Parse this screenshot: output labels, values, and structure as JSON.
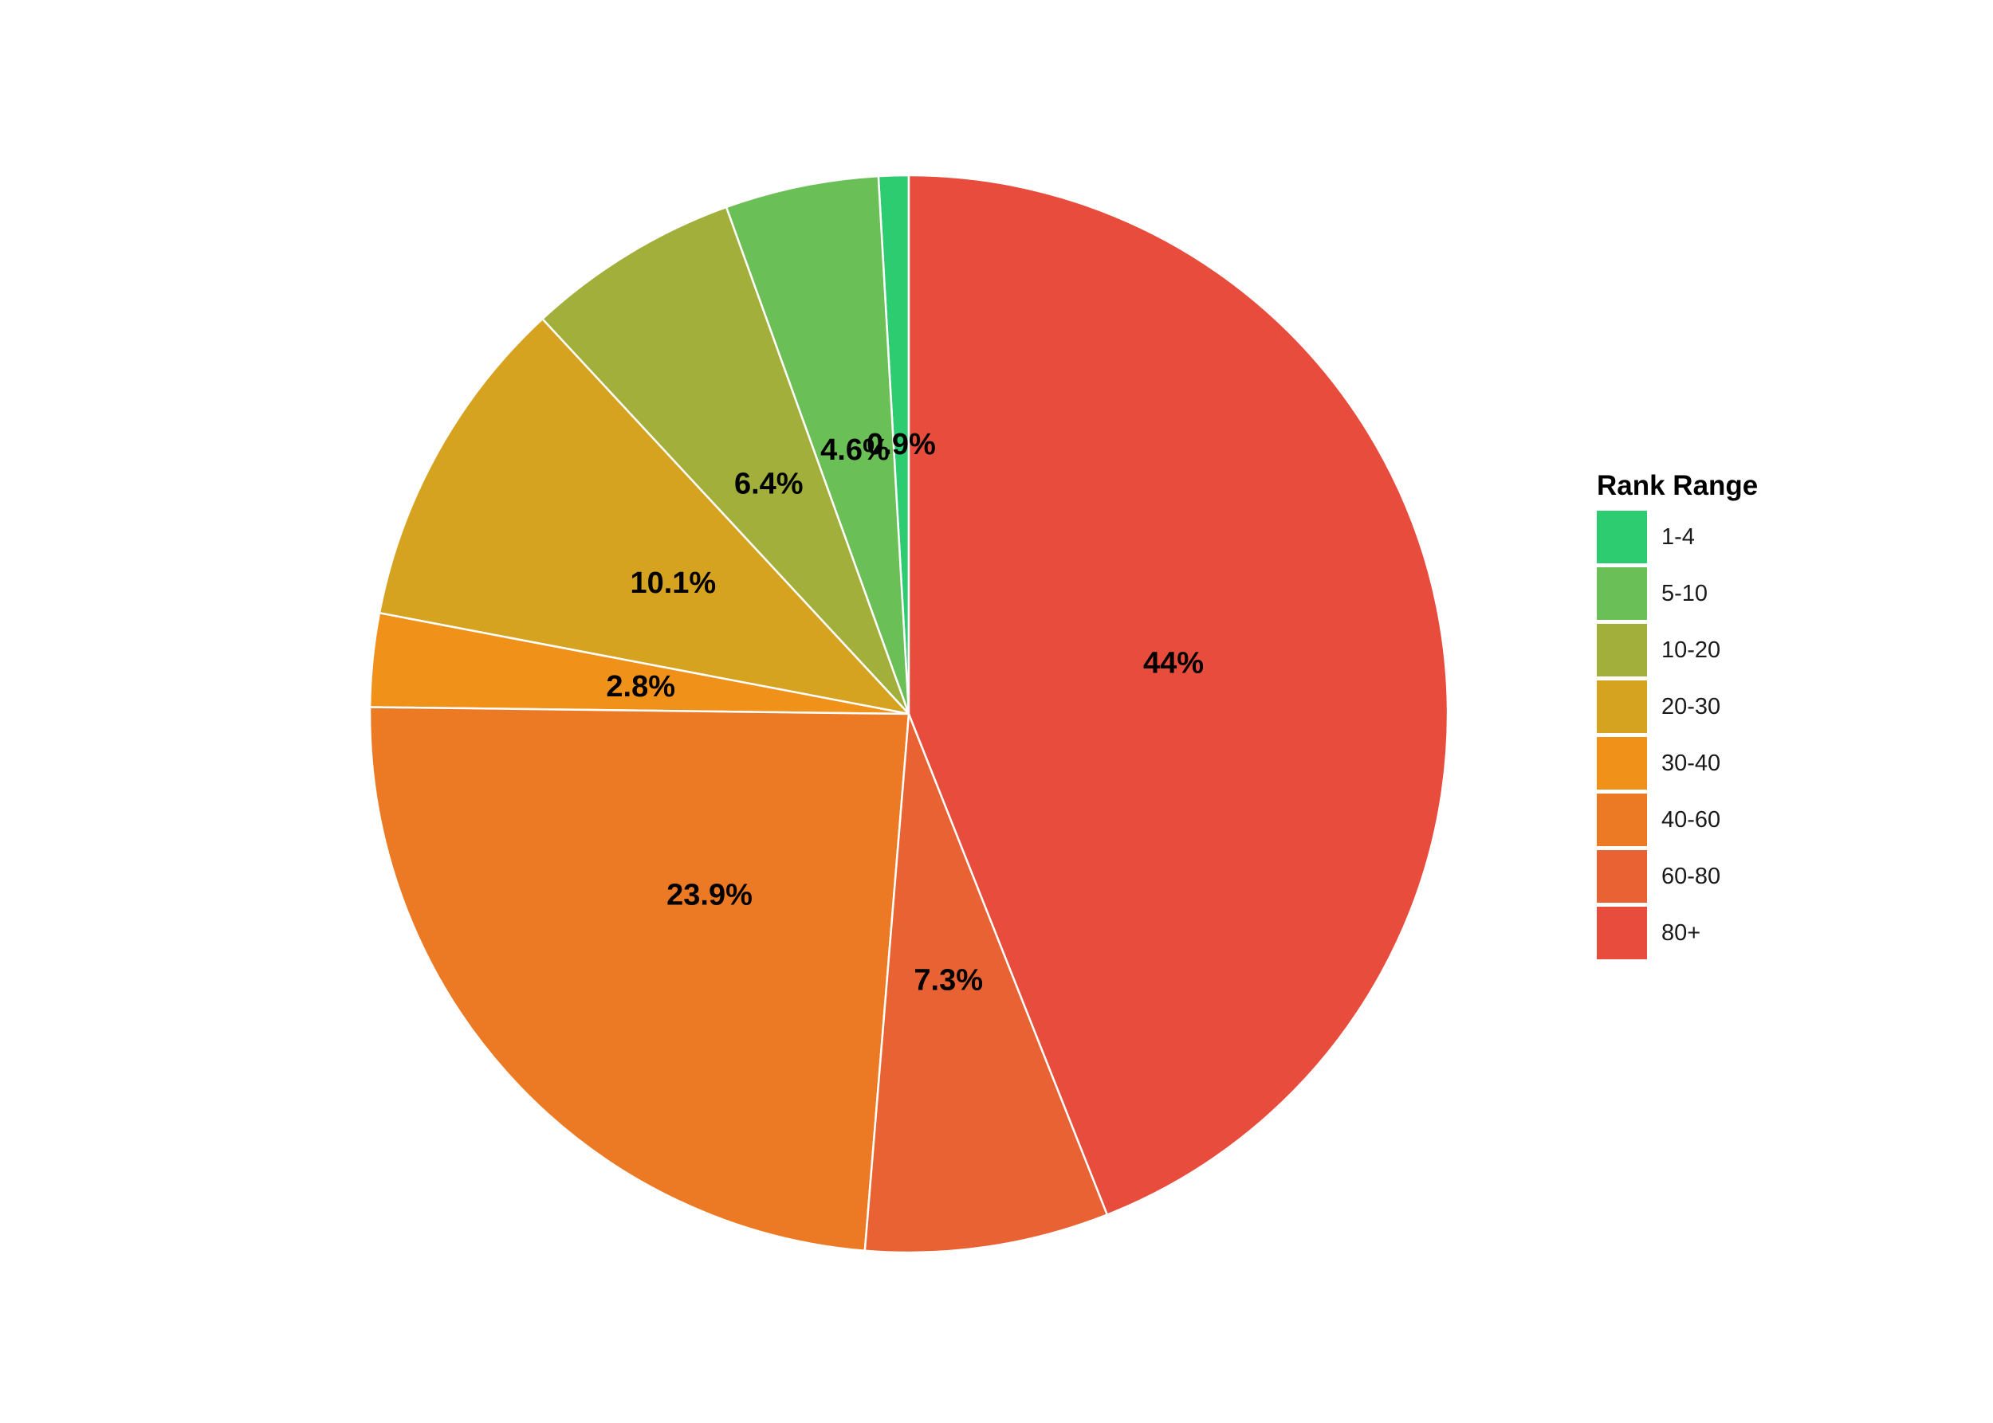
{
  "chart_data": {
    "type": "pie",
    "legend_title": "Rank Range",
    "legend_position": "right",
    "slices": [
      {
        "name": "1-4",
        "value": 0.9,
        "label": "0.9%",
        "color": "#2ECC71"
      },
      {
        "name": "5-10",
        "value": 4.6,
        "label": "4.6%",
        "color": "#6ABF56"
      },
      {
        "name": "10-20",
        "value": 6.4,
        "label": "6.4%",
        "color": "#A2B03B"
      },
      {
        "name": "20-30",
        "value": 10.1,
        "label": "10.1%",
        "color": "#D6A321"
      },
      {
        "name": "30-40",
        "value": 2.8,
        "label": "2.8%",
        "color": "#F0911A"
      },
      {
        "name": "40-60",
        "value": 23.9,
        "label": "23.9%",
        "color": "#EC7A24"
      },
      {
        "name": "60-80",
        "value": 7.3,
        "label": "7.3%",
        "color": "#E86234"
      },
      {
        "name": "80+",
        "value": 44,
        "label": "44%",
        "color": "#E74C3C"
      }
    ]
  }
}
